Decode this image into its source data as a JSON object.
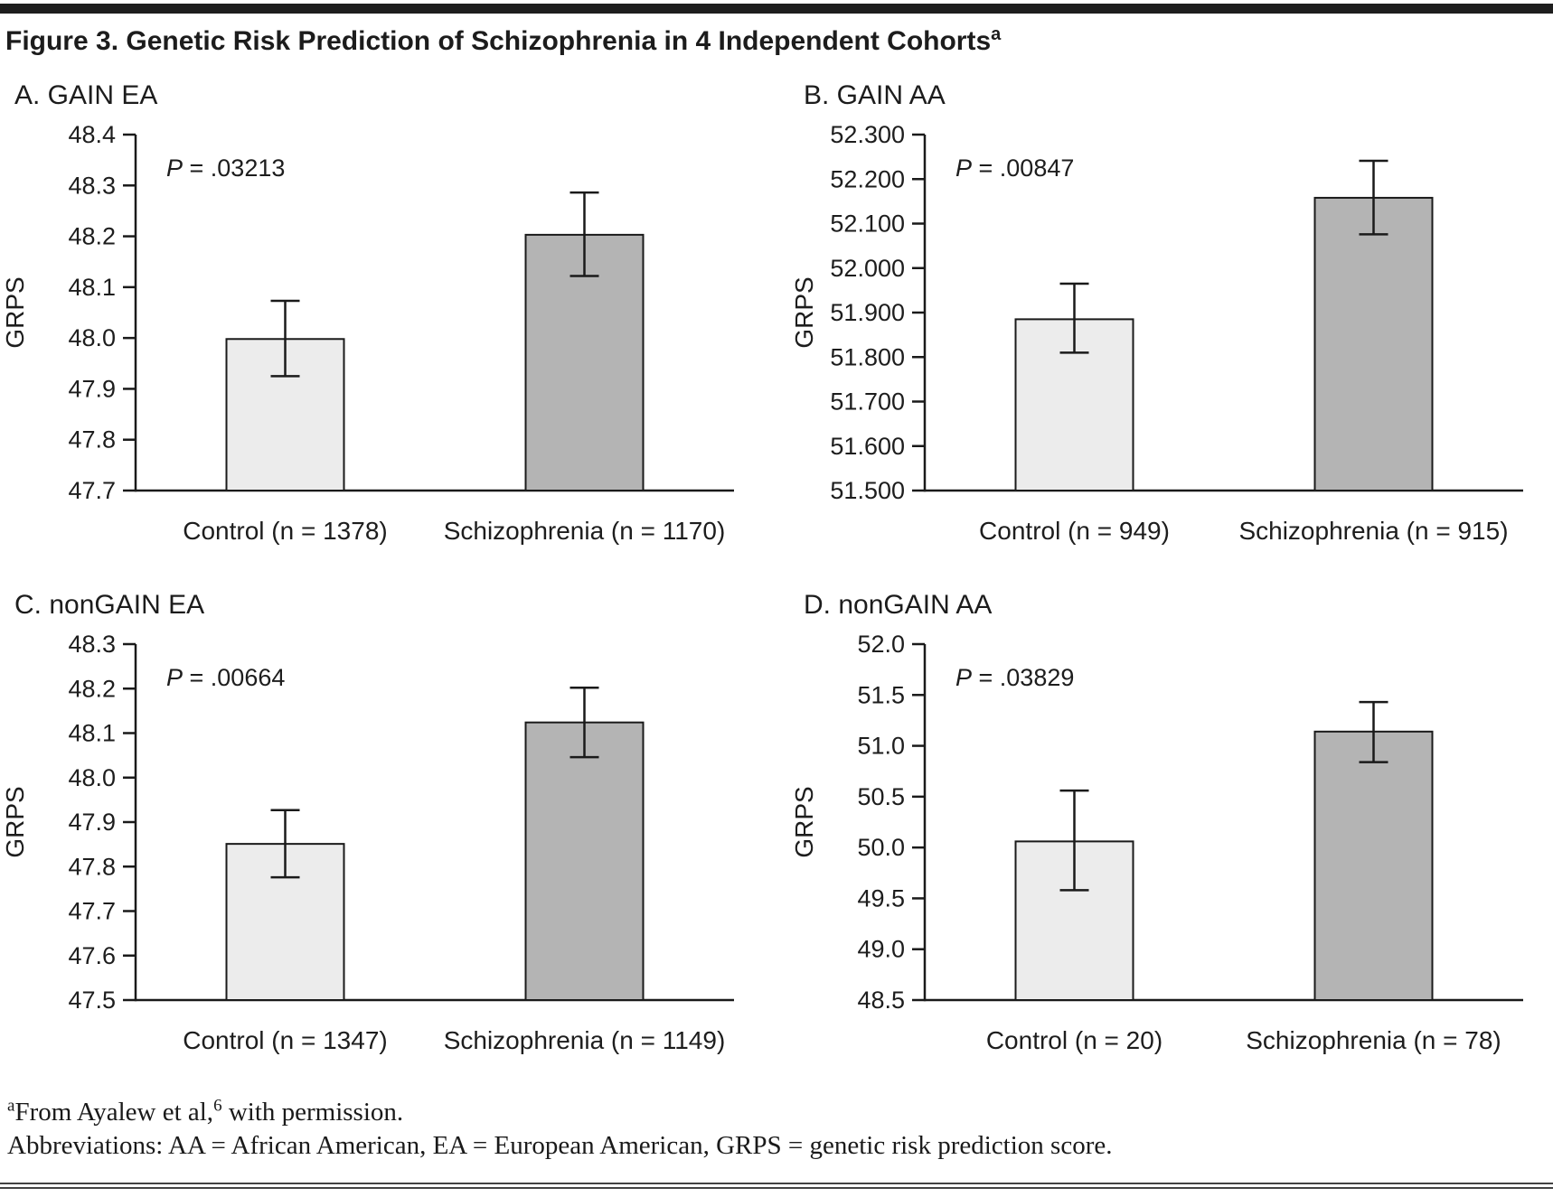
{
  "page": {
    "title": "Figure 3. Genetic Risk Prediction of Schizophrenia in 4 Independent Cohorts",
    "title_superscript": "a",
    "footnote_marker": "a",
    "footnote_line1_start": "From Ayalew et al,",
    "footnote_ref": "6",
    "footnote_line1_end": " with permission.",
    "footnote_line2": "Abbreviations: AA = African American, EA = European American, GRPS = genetic risk prediction score."
  },
  "colors": {
    "top_bar": "#1e1e1e",
    "axis": "#1a1a1a",
    "text": "#1d1d1d",
    "control_fill": "#ececec",
    "schizophrenia_fill": "#b4b4b4"
  },
  "chart_data": [
    {
      "panel": "A",
      "type": "bar",
      "title": "A. GAIN EA",
      "p_label": "P = .03213",
      "ylabel": "GRPS",
      "ylim": [
        47.7,
        48.4
      ],
      "ytick_step": 0.1,
      "ytick_decimals": 1,
      "grid": false,
      "categories": [
        "Control (n = 1378)",
        "Schizophrenia (n = 1170)"
      ],
      "values": [
        47.998,
        48.203
      ],
      "ci_low": [
        47.925,
        48.122
      ],
      "ci_high": [
        48.073,
        48.286
      ],
      "bar_fills": [
        "#ececec",
        "#b4b4b4"
      ]
    },
    {
      "panel": "B",
      "type": "bar",
      "title": "B. GAIN AA",
      "p_label": "P = .00847",
      "ylabel": "GRPS",
      "ylim": [
        51.5,
        52.3
      ],
      "ytick_step": 0.1,
      "ytick_decimals": 3,
      "grid": false,
      "categories": [
        "Control (n = 949)",
        "Schizophrenia (n = 915)"
      ],
      "values": [
        51.885,
        52.158
      ],
      "ci_low": [
        51.81,
        52.076
      ],
      "ci_high": [
        51.965,
        52.241
      ],
      "bar_fills": [
        "#ececec",
        "#b4b4b4"
      ]
    },
    {
      "panel": "C",
      "type": "bar",
      "title": "C. nonGAIN EA",
      "p_label": "P = .00664",
      "ylabel": "GRPS",
      "ylim": [
        47.5,
        48.3
      ],
      "ytick_step": 0.1,
      "ytick_decimals": 1,
      "grid": false,
      "categories": [
        "Control (n = 1347)",
        "Schizophrenia (n = 1149)"
      ],
      "values": [
        47.851,
        48.124
      ],
      "ci_low": [
        47.776,
        48.046
      ],
      "ci_high": [
        47.927,
        48.202
      ],
      "bar_fills": [
        "#ececec",
        "#b4b4b4"
      ]
    },
    {
      "panel": "D",
      "type": "bar",
      "title": "D. nonGAIN AA",
      "p_label": "P = .03829",
      "ylabel": "GRPS",
      "ylim": [
        48.5,
        52.0
      ],
      "ytick_step": 0.5,
      "ytick_decimals": 1,
      "grid": false,
      "categories": [
        "Control (n = 20)",
        "Schizophrenia (n = 78)"
      ],
      "values": [
        50.06,
        51.14
      ],
      "ci_low": [
        49.58,
        50.84
      ],
      "ci_high": [
        50.56,
        51.43
      ],
      "bar_fills": [
        "#ececec",
        "#b4b4b4"
      ]
    }
  ]
}
